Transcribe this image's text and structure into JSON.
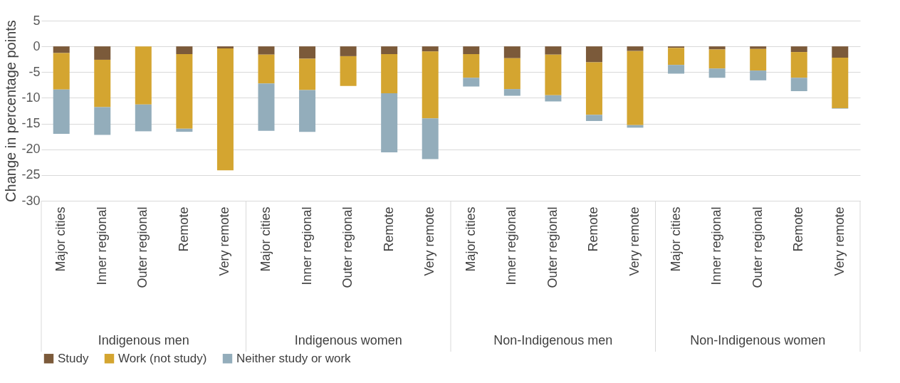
{
  "chart_data": {
    "type": "bar",
    "stacked": true,
    "ylabel": "Change in percentage points",
    "categories": [
      "Major cities",
      "Inner regional",
      "Outer regional",
      "Remote",
      "Very remote",
      "Major cities",
      "Inner regional",
      "Outer regional",
      "Remote",
      "Very remote",
      "Major cities",
      "Inner regional",
      "Outer regional",
      "Remote",
      "Very remote",
      "Major cities",
      "Inner regional",
      "Outer regional",
      "Remote",
      "Very remote"
    ],
    "series": [
      {
        "name": "Study",
        "color": "#7b5a3a",
        "values": [
          -1.3,
          -2.6,
          null,
          -1.5,
          -0.4,
          -1.6,
          -2.4,
          -1.9,
          -1.5,
          -1.0,
          -1.5,
          -2.3,
          -1.6,
          -3.1,
          -0.9,
          -0.3,
          -0.6,
          -0.5,
          -1.1,
          -2.2
        ]
      },
      {
        "name": "Work (not study)",
        "color": "#d4a530",
        "values": [
          -7.1,
          -9.2,
          -11.3,
          -14.5,
          -23.7,
          -5.6,
          -6.1,
          -5.8,
          -7.6,
          -13.0,
          -4.6,
          -6.0,
          -7.9,
          -10.2,
          -14.4,
          -3.3,
          -3.7,
          -4.2,
          -5.0,
          -9.8
        ]
      },
      {
        "name": "Neither study or work",
        "color": "#93adbb",
        "values": [
          -8.6,
          -5.4,
          -5.2,
          -0.6,
          null,
          -9.2,
          -8.1,
          null,
          -11.5,
          -7.9,
          -1.7,
          -1.3,
          -1.2,
          -1.2,
          -0.5,
          -1.7,
          -1.8,
          -1.9,
          -2.6,
          -0.1
        ]
      }
    ],
    "annotations": [
      "Indigenous men",
      "Indigenous women",
      "Non-Indigenous men",
      "Non-Indigenous women"
    ],
    "ylim": [
      -30,
      5
    ],
    "yticks": [
      -30,
      -25,
      -20,
      -15,
      -10,
      -5,
      0,
      5
    ],
    "grid": "y",
    "legend": "bottom"
  }
}
